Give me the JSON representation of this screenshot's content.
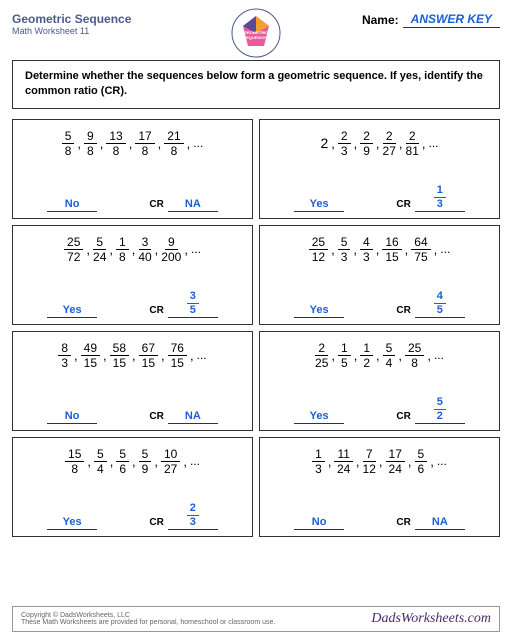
{
  "header": {
    "title": "Geometric Sequence",
    "subtitle": "Math Worksheet 11",
    "name_label": "Name:",
    "answer_key": "ANSWER KEY"
  },
  "instructions": "Determine whether the sequences below form a geometric sequence. If yes, identify the common ratio (CR).",
  "cr_label": "CR",
  "problems": [
    {
      "terms": [
        {
          "n": "5",
          "d": "8"
        },
        {
          "n": "9",
          "d": "8"
        },
        {
          "n": "13",
          "d": "8"
        },
        {
          "n": "17",
          "d": "8"
        },
        {
          "n": "21",
          "d": "8"
        }
      ],
      "ans": "No",
      "cr": "NA"
    },
    {
      "terms": [
        {
          "w": "2"
        },
        {
          "n": "2",
          "d": "3"
        },
        {
          "n": "2",
          "d": "9"
        },
        {
          "n": "2",
          "d": "27"
        },
        {
          "n": "2",
          "d": "81"
        }
      ],
      "ans": "Yes",
      "cr_frac": {
        "n": "1",
        "d": "3"
      }
    },
    {
      "terms": [
        {
          "n": "25",
          "d": "72"
        },
        {
          "n": "5",
          "d": "24"
        },
        {
          "n": "1",
          "d": "8"
        },
        {
          "n": "3",
          "d": "40"
        },
        {
          "n": "9",
          "d": "200"
        }
      ],
      "ans": "Yes",
      "cr_frac": {
        "n": "3",
        "d": "5"
      }
    },
    {
      "terms": [
        {
          "n": "25",
          "d": "12"
        },
        {
          "n": "5",
          "d": "3"
        },
        {
          "n": "4",
          "d": "3"
        },
        {
          "n": "16",
          "d": "15"
        },
        {
          "n": "64",
          "d": "75"
        }
      ],
      "ans": "Yes",
      "cr_frac": {
        "n": "4",
        "d": "5"
      }
    },
    {
      "terms": [
        {
          "n": "8",
          "d": "3"
        },
        {
          "n": "49",
          "d": "15"
        },
        {
          "n": "58",
          "d": "15"
        },
        {
          "n": "67",
          "d": "15"
        },
        {
          "n": "76",
          "d": "15"
        }
      ],
      "ans": "No",
      "cr": "NA"
    },
    {
      "terms": [
        {
          "n": "2",
          "d": "25"
        },
        {
          "n": "1",
          "d": "5"
        },
        {
          "n": "1",
          "d": "2"
        },
        {
          "n": "5",
          "d": "4"
        },
        {
          "n": "25",
          "d": "8"
        }
      ],
      "ans": "Yes",
      "cr_frac": {
        "n": "5",
        "d": "2"
      }
    },
    {
      "terms": [
        {
          "n": "15",
          "d": "8"
        },
        {
          "n": "5",
          "d": "4"
        },
        {
          "n": "5",
          "d": "6"
        },
        {
          "n": "5",
          "d": "9"
        },
        {
          "n": "10",
          "d": "27"
        }
      ],
      "ans": "Yes",
      "cr_frac": {
        "n": "2",
        "d": "3"
      }
    },
    {
      "terms": [
        {
          "n": "1",
          "d": "3"
        },
        {
          "n": "11",
          "d": "24"
        },
        {
          "n": "7",
          "d": "12"
        },
        {
          "n": "17",
          "d": "24"
        },
        {
          "n": "5",
          "d": "6"
        }
      ],
      "ans": "No",
      "cr": "NA"
    }
  ],
  "footer": {
    "copyright": "Copyright © DadsWorksheets, LLC",
    "note": "These Math Worksheets are provided for personal, homeschool or classroom use.",
    "brand": "DadsWorksheets.com"
  }
}
